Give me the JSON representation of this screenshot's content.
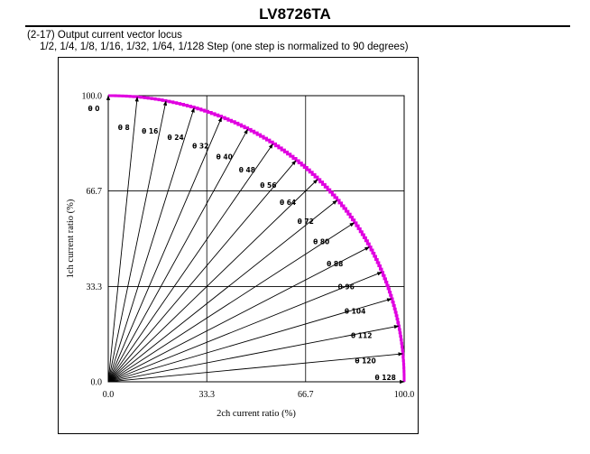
{
  "header": {
    "doc_title": "LV8726TA",
    "section_heading": "(2-17) Output current vector locus",
    "section_subtitle": "1/2, 1/4, 1/8, 1/16, 1/32, 1/64, 1/128 Step (one step is normalized to 90 degrees)"
  },
  "colors": {
    "locus": "#e000e0",
    "grid": "#000000",
    "vectors": "#000000"
  },
  "chart_data": {
    "type": "scatter",
    "xlabel": "2ch current ratio (%)",
    "ylabel": "1ch current ratio (%)",
    "xlim": [
      0,
      100
    ],
    "ylim": [
      0,
      100
    ],
    "grid": true,
    "x_ticks": [
      "0.0",
      "33.3",
      "66.7",
      "100.0"
    ],
    "y_ticks": [
      "0.0",
      "33.3",
      "66.7",
      "100.0"
    ],
    "tick_values": [
      0,
      33.3,
      66.7,
      100
    ],
    "locus_steps": 128,
    "vectors": [
      {
        "label": "θ 0",
        "step": 0,
        "x": 0.0,
        "y": 100.0
      },
      {
        "label": "θ 8",
        "step": 8,
        "x": 9.8,
        "y": 99.5
      },
      {
        "label": "θ 16",
        "step": 16,
        "x": 19.5,
        "y": 98.1
      },
      {
        "label": "θ 24",
        "step": 24,
        "x": 29.0,
        "y": 95.7
      },
      {
        "label": "θ 32",
        "step": 32,
        "x": 38.3,
        "y": 92.4
      },
      {
        "label": "θ 40",
        "step": 40,
        "x": 47.1,
        "y": 88.2
      },
      {
        "label": "θ 48",
        "step": 48,
        "x": 55.6,
        "y": 83.1
      },
      {
        "label": "θ 56",
        "step": 56,
        "x": 63.4,
        "y": 77.3
      },
      {
        "label": "θ 64",
        "step": 64,
        "x": 70.7,
        "y": 70.7
      },
      {
        "label": "θ 72",
        "step": 72,
        "x": 77.3,
        "y": 63.4
      },
      {
        "label": "θ 80",
        "step": 80,
        "x": 83.1,
        "y": 55.6
      },
      {
        "label": "θ 88",
        "step": 88,
        "x": 88.2,
        "y": 47.1
      },
      {
        "label": "θ 96",
        "step": 96,
        "x": 92.4,
        "y": 38.3
      },
      {
        "label": "θ 104",
        "step": 104,
        "x": 95.7,
        "y": 29.0
      },
      {
        "label": "θ 112",
        "step": 112,
        "x": 98.1,
        "y": 19.5
      },
      {
        "label": "θ 120",
        "step": 120,
        "x": 99.5,
        "y": 9.8
      },
      {
        "label": "θ 128",
        "step": 128,
        "x": 100.0,
        "y": 0.0
      }
    ]
  }
}
